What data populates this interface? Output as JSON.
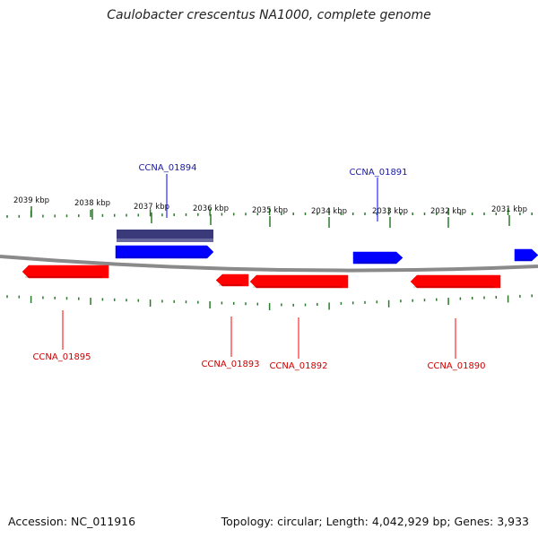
{
  "title": "Caulobacter crescentus NA1000, complete genome",
  "footer": {
    "accession": "Accession: NC_011916",
    "summary": "Topology: circular; Length: 4,042,929 bp; Genes: 3,933"
  },
  "colors": {
    "forward": "#0000ff",
    "reverse": "#ff0000",
    "selected": "#3a3a7a",
    "tick": "#2a7a2a",
    "backbone": "#8a8a8a",
    "label_forward": "#1a1aa0",
    "label_reverse": "#cc0000"
  },
  "scale_labels": [
    "2039 kbp",
    "2038 kbp",
    "2037 kbp",
    "2036 kbp",
    "2035 kbp",
    "2034 kbp",
    "2033 kbp",
    "2032 kbp",
    "2031 kbp"
  ],
  "genes": [
    {
      "id": "CCNA_01894",
      "strand": "forward",
      "labeled": true
    },
    {
      "id": "CCNA_01891",
      "strand": "forward",
      "labeled": true
    },
    {
      "id": "CCNA_01895",
      "strand": "reverse",
      "labeled": true
    },
    {
      "id": "CCNA_01893",
      "strand": "reverse",
      "labeled": true
    },
    {
      "id": "CCNA_01892",
      "strand": "reverse",
      "labeled": true
    },
    {
      "id": "CCNA_01890",
      "strand": "reverse",
      "labeled": true
    }
  ]
}
